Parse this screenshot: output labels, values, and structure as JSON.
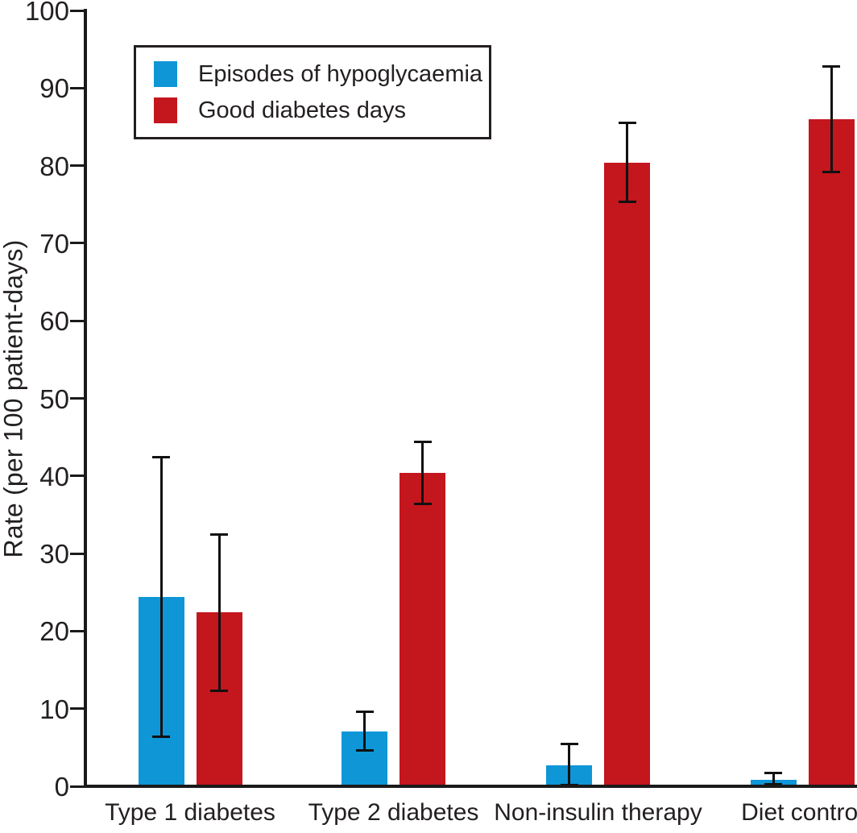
{
  "chart_data": {
    "type": "bar",
    "title": "",
    "ylabel": "Rate (per 100 patient-days)",
    "xlabel": "",
    "ylim": [
      0,
      100
    ],
    "yticks": [
      0,
      10,
      20,
      30,
      40,
      50,
      60,
      70,
      80,
      90,
      100
    ],
    "grid": false,
    "legend_position": "top-left",
    "error_bars": true,
    "categories": [
      "Type 1 diabetes",
      "Type 2 diabetes",
      "Non-insulin therapy",
      "Diet control"
    ],
    "series": [
      {
        "name": "Episodes of hypoglycaemia",
        "color": "#0e96d7",
        "values": [
          24.4,
          7.1,
          2.7,
          0.8
        ],
        "error_low": [
          6.4,
          4.6,
          0.2,
          0.3
        ],
        "error_high": [
          42.4,
          9.6,
          5.4,
          1.7
        ]
      },
      {
        "name": "Good diabetes days",
        "color": "#c4161d",
        "values": [
          22.4,
          40.4,
          80.4,
          86.0
        ],
        "error_low": [
          12.3,
          36.4,
          75.3,
          79.2
        ],
        "error_high": [
          32.4,
          44.4,
          85.5,
          92.8
        ]
      }
    ],
    "colors": {
      "axis": "#1a1a1a",
      "text": "#231f20",
      "background": "#ffffff"
    }
  }
}
